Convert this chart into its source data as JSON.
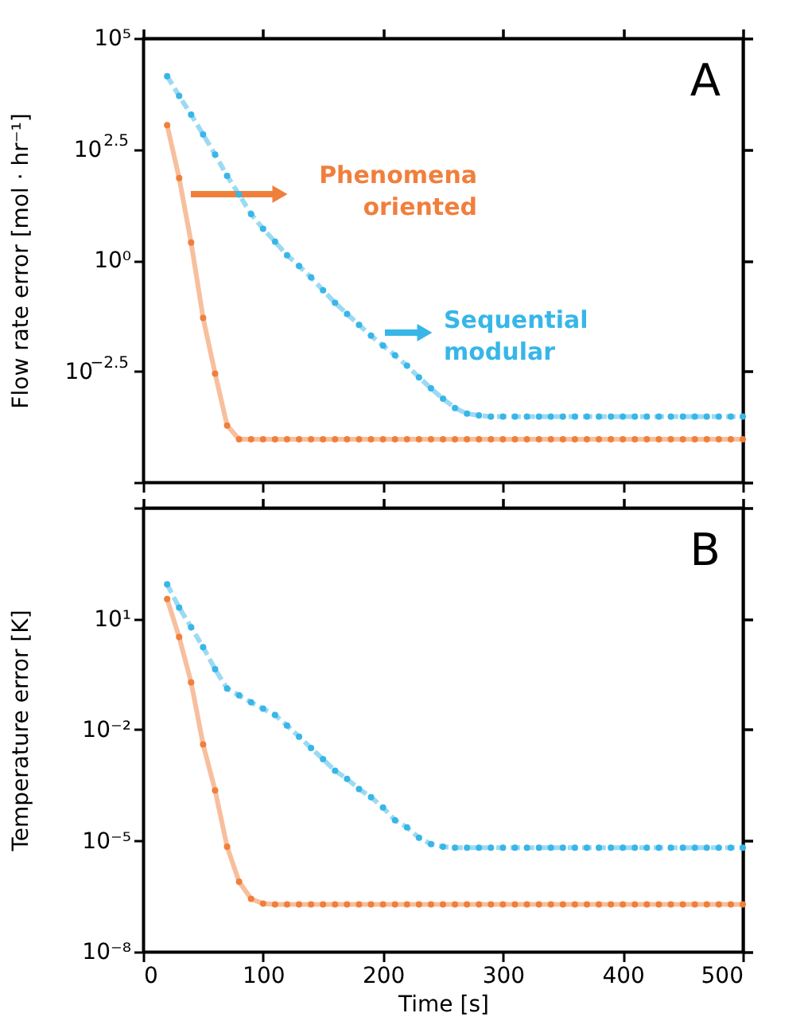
{
  "chart_data": [
    {
      "type": "line",
      "ylabel": "Flow rate error [mol · hr⁻¹]",
      "annotations": [
        "A"
      ],
      "legend": "bottom left",
      "log": "y",
      "grid": false,
      "tick_labels": "y",
      "marker": "circle",
      "xlim": [
        0,
        500
      ],
      "xticks": [
        0,
        100,
        200,
        300,
        400,
        500
      ],
      "ylim": [
        1e-05,
        100000.0
      ],
      "yticks": [
        {
          "value": 1e-05,
          "label": null
        },
        {
          "value": 0.0031623,
          "label": "10$^{−2.5}$"
        },
        {
          "value": 1,
          "label": "10⁰"
        },
        {
          "value": 316.23,
          "label": "10$^{2.5}$"
        },
        {
          "value": 100000.0,
          "label": "10⁵"
        }
      ],
      "x": [
        20,
        30,
        40,
        50,
        60,
        70,
        80,
        90,
        100,
        110,
        120,
        130,
        140,
        150,
        160,
        170,
        180,
        190,
        200,
        210,
        220,
        230,
        240,
        250,
        260,
        270,
        280,
        290,
        300,
        310,
        320,
        330,
        340,
        350,
        360,
        370,
        380,
        390,
        400,
        410,
        420,
        430,
        440,
        450,
        460,
        470,
        480,
        490,
        500
      ],
      "series": [
        {
          "name": "Phenomena oriented",
          "color": "#f07f3c",
          "line_style": "solid",
          "values": [
            1100,
            71,
            2.5,
            0.05,
            0.0028,
            0.00019,
            9.3e-05,
            9.3e-05,
            9.3e-05,
            9.3e-05,
            9.3e-05,
            9.3e-05,
            9.3e-05,
            9.3e-05,
            9.3e-05,
            9.3e-05,
            9.3e-05,
            9.3e-05,
            9.3e-05,
            9.3e-05,
            9.3e-05,
            9.3e-05,
            9.3e-05,
            9.3e-05,
            9.3e-05,
            9.3e-05,
            9.3e-05,
            9.3e-05,
            9.3e-05,
            9.3e-05,
            9.3e-05,
            9.3e-05,
            9.3e-05,
            9.3e-05,
            9.3e-05,
            9.3e-05,
            9.3e-05,
            9.3e-05,
            9.3e-05,
            9.3e-05,
            9.3e-05,
            9.3e-05,
            9.3e-05,
            9.3e-05,
            9.3e-05,
            9.3e-05,
            9.3e-05,
            9.3e-05,
            9.3e-05
          ]
        },
        {
          "name": "Sequential modular",
          "color": "#38b6e8",
          "line_style": "dashed",
          "values": [
            14000,
            5000,
            1900,
            680,
            240,
            79,
            30,
            11,
            5.1,
            2.6,
            1.3,
            0.74,
            0.41,
            0.21,
            0.11,
            0.062,
            0.035,
            0.02,
            0.012,
            0.0072,
            0.0042,
            0.0023,
            0.0013,
            0.00076,
            0.00047,
            0.00035,
            0.00032,
            0.0003,
            0.0003,
            0.0003,
            0.0003,
            0.0003,
            0.0003,
            0.0003,
            0.0003,
            0.0003,
            0.0003,
            0.0003,
            0.0003,
            0.0003,
            0.0003,
            0.0003,
            0.0003,
            0.0003,
            0.0003,
            0.0003,
            0.0003,
            0.0003,
            0.0003
          ]
        }
      ]
    },
    {
      "type": "line",
      "xlabel": "Time [s]",
      "ylabel": "Temperature error [K]",
      "annotations": [
        "B"
      ],
      "log": "y",
      "grid": false,
      "marker": "circle",
      "xlim": [
        0,
        500
      ],
      "xticks": [
        0,
        100,
        200,
        300,
        400,
        500
      ],
      "ylim": [
        1e-08,
        10000.0
      ],
      "yticks": [
        {
          "value": 1e-08,
          "label": "10⁻⁸"
        },
        {
          "value": 1e-05,
          "label": "10⁻⁵"
        },
        {
          "value": 0.01,
          "label": "10⁻²"
        },
        {
          "value": 10,
          "label": "10¹"
        },
        {
          "value": 10000.0,
          "label": null
        }
      ],
      "x": [
        20,
        30,
        40,
        50,
        60,
        70,
        80,
        90,
        100,
        110,
        120,
        130,
        140,
        150,
        160,
        170,
        180,
        190,
        200,
        210,
        220,
        230,
        240,
        250,
        260,
        270,
        280,
        290,
        300,
        310,
        320,
        330,
        340,
        350,
        360,
        370,
        380,
        390,
        400,
        410,
        420,
        430,
        440,
        450,
        460,
        470,
        480,
        490,
        500
      ],
      "series": [
        {
          "color": "#f07f3c",
          "line_style": "solid",
          "values": [
            34,
            3.2,
            0.19,
            0.004,
            0.00023,
            6.9e-06,
            7.8e-07,
            2.7e-07,
            2e-07,
            1.9e-07,
            1.9e-07,
            1.9e-07,
            1.9e-07,
            1.9e-07,
            1.9e-07,
            1.9e-07,
            1.9e-07,
            1.9e-07,
            1.9e-07,
            1.9e-07,
            1.9e-07,
            1.9e-07,
            1.9e-07,
            1.9e-07,
            1.9e-07,
            1.9e-07,
            1.9e-07,
            1.9e-07,
            1.9e-07,
            1.9e-07,
            1.9e-07,
            1.9e-07,
            1.9e-07,
            1.9e-07,
            1.9e-07,
            1.9e-07,
            1.9e-07,
            1.9e-07,
            1.9e-07,
            1.9e-07,
            1.9e-07,
            1.9e-07,
            1.9e-07,
            1.9e-07,
            1.9e-07,
            1.9e-07,
            1.9e-07,
            1.9e-07,
            1.9e-07
          ]
        },
        {
          "color": "#38b6e8",
          "line_style": "dashed",
          "values": [
            85,
            20,
            5.9,
            1.7,
            0.43,
            0.13,
            0.085,
            0.055,
            0.037,
            0.025,
            0.013,
            0.0065,
            0.0032,
            0.0016,
            0.00078,
            0.00047,
            0.00025,
            0.00015,
            7.9e-05,
            3.6e-05,
            2.3e-05,
            1.2e-05,
            8.1e-06,
            6.9e-06,
            6.5e-06,
            6.5e-06,
            6.5e-06,
            6.5e-06,
            6.5e-06,
            6.5e-06,
            6.5e-06,
            6.5e-06,
            6.5e-06,
            6.5e-06,
            6.5e-06,
            6.5e-06,
            6.5e-06,
            6.5e-06,
            6.5e-06,
            6.5e-06,
            6.5e-06,
            6.5e-06,
            6.5e-06,
            6.5e-06,
            6.5e-06,
            6.5e-06,
            6.5e-06,
            6.5e-06,
            6.5e-06
          ]
        }
      ]
    }
  ]
}
